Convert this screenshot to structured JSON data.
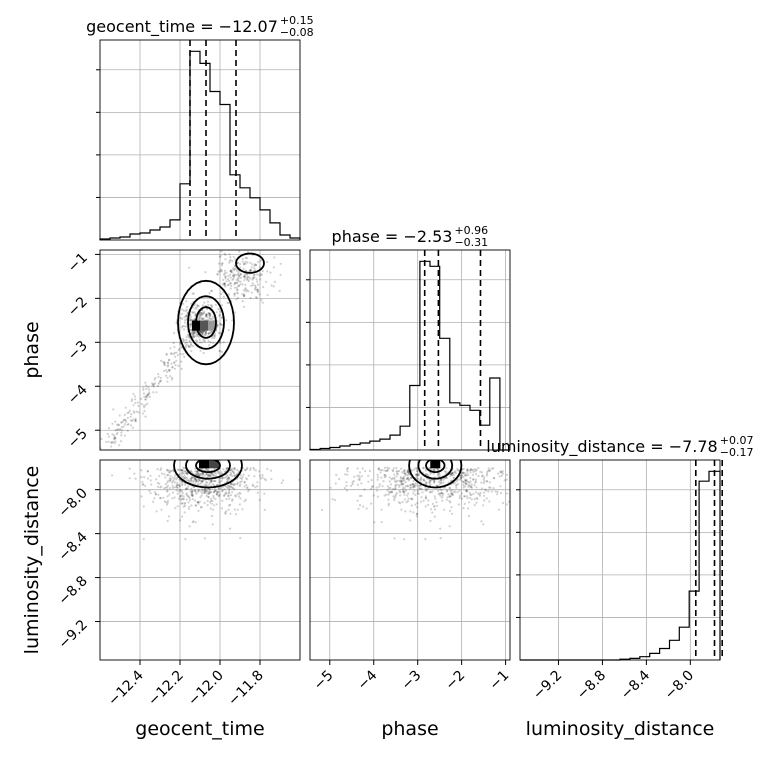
{
  "chart_data": {
    "type": "corner",
    "parameters": [
      "geocent_time",
      "phase",
      "luminosity_distance"
    ],
    "titles": [
      {
        "param": "geocent_time",
        "label": "geocent_time = −12.07",
        "plus": "+0.15",
        "minus": "−0.08"
      },
      {
        "param": "phase",
        "label": "phase = −2.53",
        "plus": "+0.96",
        "minus": "−0.31"
      },
      {
        "param": "luminosity_distance",
        "label": "luminosity_distance = −7.78",
        "plus": "+0.07",
        "minus": "−0.17"
      }
    ],
    "ranges": {
      "geocent_time": [
        -12.6,
        -11.6
      ],
      "phase": [
        -5.45,
        -0.9
      ],
      "luminosity_distance": [
        -9.55,
        -7.73
      ]
    },
    "ticks": {
      "geocent_time": [
        -12.4,
        -12.2,
        -12.0,
        -11.8
      ],
      "phase": [
        -5,
        -4,
        -3,
        -2,
        -1
      ],
      "luminosity_distance": [
        -9.2,
        -8.8,
        -8.4,
        -8.0
      ]
    },
    "tick_labels": {
      "geocent_time": [
        "−12.4",
        "−12.2",
        "−12.0",
        "−11.8"
      ],
      "phase": [
        "−5",
        "−4",
        "−3",
        "−2",
        "−1"
      ],
      "luminosity_distance": [
        "−9.2",
        "−8.8",
        "−8.4",
        "−8.0"
      ]
    },
    "quantiles": {
      "geocent_time": [
        -12.15,
        -12.07,
        -11.92
      ],
      "phase": [
        -2.84,
        -2.53,
        -1.57
      ],
      "luminosity_distance": [
        -7.95,
        -7.78,
        -7.71
      ]
    },
    "histograms": {
      "geocent_time": {
        "edges": [
          -12.6,
          -12.55,
          -12.5,
          -12.45,
          -12.4,
          -12.35,
          -12.3,
          -12.25,
          -12.2,
          -12.15,
          -12.1,
          -12.05,
          -12.0,
          -11.95,
          -11.9,
          -11.85,
          -11.8,
          -11.75,
          -11.7,
          -11.65,
          -11.6
        ],
        "counts": [
          1,
          2,
          3,
          6,
          7,
          10,
          13,
          20,
          56,
          188,
          176,
          148,
          135,
          65,
          52,
          42,
          30,
          17,
          5,
          2
        ]
      },
      "phase": {
        "edges": [
          -5.45,
          -5.22,
          -5.0,
          -4.77,
          -4.54,
          -4.31,
          -4.09,
          -3.86,
          -3.63,
          -3.4,
          -3.18,
          -2.95,
          -2.72,
          -2.5,
          -2.27,
          -2.04,
          -1.81,
          -1.59,
          -1.36,
          -1.13,
          -0.9
        ],
        "counts": [
          1,
          3,
          5,
          8,
          11,
          14,
          18,
          22,
          30,
          48,
          130,
          380,
          370,
          225,
          95,
          90,
          80,
          50,
          145,
          0
        ]
      },
      "luminosity_distance": {
        "edges": [
          -9.55,
          -9.46,
          -9.37,
          -9.28,
          -9.19,
          -9.1,
          -9.01,
          -8.92,
          -8.83,
          -8.74,
          -8.64,
          -8.55,
          -8.46,
          -8.37,
          -8.28,
          -8.19,
          -8.1,
          -8.01,
          -7.92,
          -7.83,
          -7.73
        ],
        "counts": [
          0,
          0,
          0,
          0,
          0,
          0,
          0,
          0,
          0,
          0,
          1,
          2,
          4,
          8,
          14,
          24,
          40,
          84,
          218,
          230
        ]
      }
    },
    "xlabels": [
      "geocent_time",
      "phase",
      "luminosity_distance"
    ],
    "ylabels": [
      "phase",
      "luminosity_distance"
    ],
    "grid": true
  }
}
